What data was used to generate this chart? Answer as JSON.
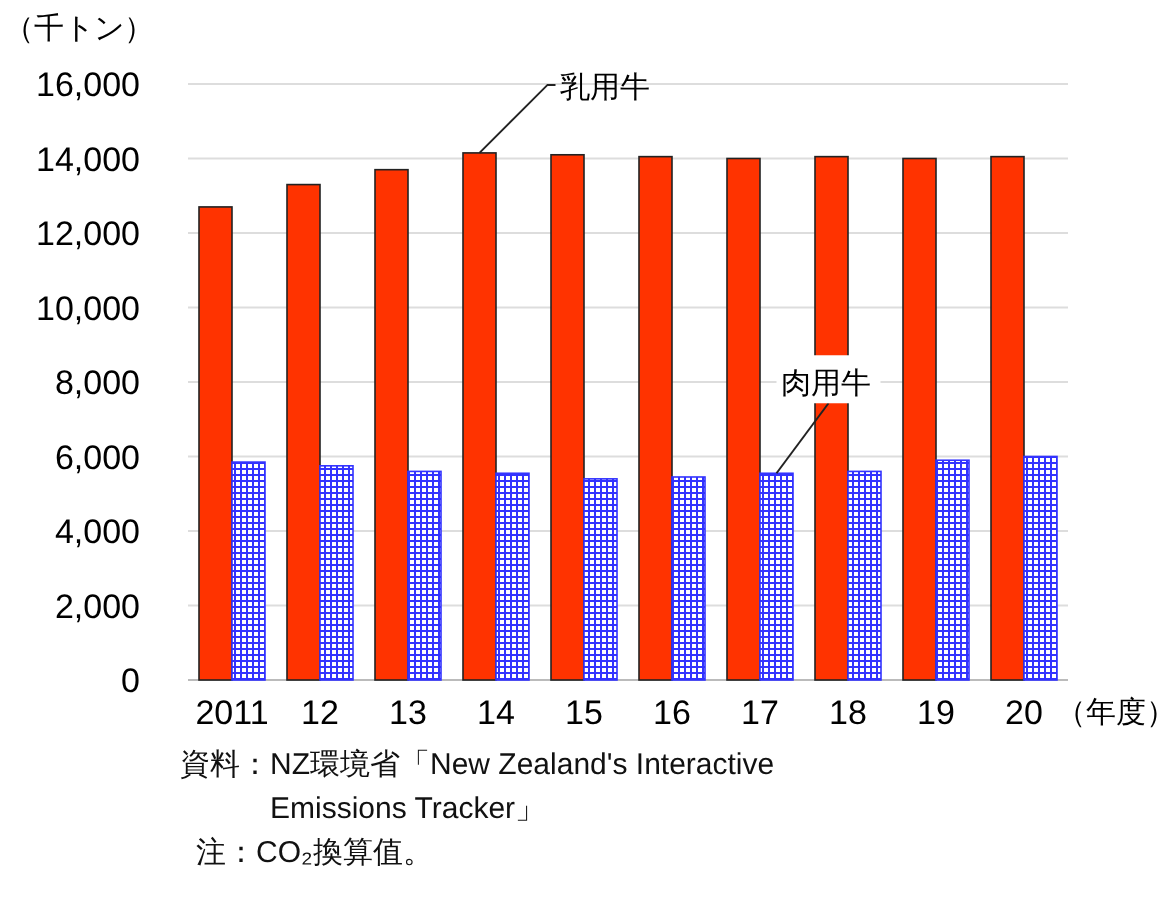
{
  "chart_data": {
    "type": "bar",
    "ylabel": "（千トン）",
    "xlabel": "（年度）",
    "categories": [
      "2011",
      "12",
      "13",
      "14",
      "15",
      "16",
      "17",
      "18",
      "19",
      "20"
    ],
    "series": [
      {
        "name": "乳用牛",
        "color": "#ff3300",
        "values": [
          12700,
          13300,
          13700,
          14150,
          14100,
          14050,
          14000,
          14050,
          14000,
          14050
        ]
      },
      {
        "name": "肉用牛",
        "color": "#3333ff",
        "values": [
          5850,
          5750,
          5600,
          5550,
          5400,
          5450,
          5550,
          5600,
          5900,
          6000
        ]
      }
    ],
    "ylim": [
      0,
      16000
    ],
    "yticks": [
      {
        "value": 0,
        "label": "0"
      },
      {
        "value": 2000,
        "label": "2,000"
      },
      {
        "value": 4000,
        "label": "4,000"
      },
      {
        "value": 6000,
        "label": "6,000"
      },
      {
        "value": 8000,
        "label": "8,000"
      },
      {
        "value": 10000,
        "label": "10,000"
      },
      {
        "value": 12000,
        "label": "12,000"
      },
      {
        "value": 14000,
        "label": "14,000"
      },
      {
        "value": 16000,
        "label": "16,000"
      }
    ],
    "grid": "y",
    "annotations": [
      "資料：NZ環境省「New Zealand's Interactive Emissions Tracker」",
      "注：CO₂換算值。"
    ]
  }
}
